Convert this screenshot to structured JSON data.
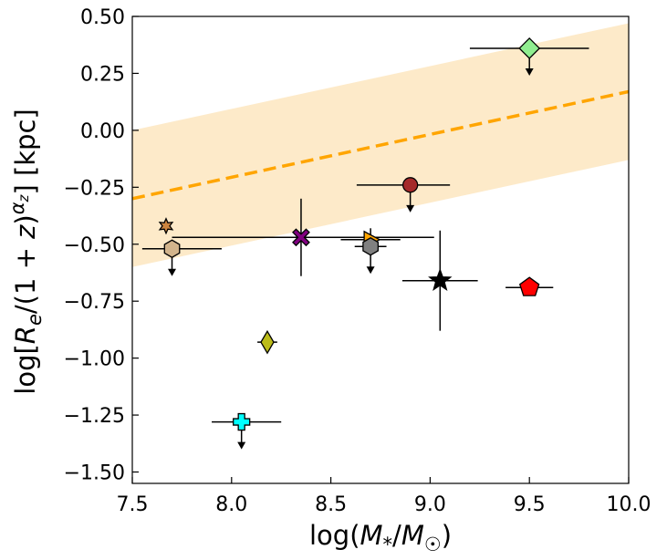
{
  "chart_data": {
    "type": "scatter",
    "xlabel": "log(M*/M☉)",
    "ylabel": "log[Re/(1 + z)^αz] [kpc]",
    "xlim": [
      7.5,
      10.0
    ],
    "ylim": [
      -1.55,
      0.5
    ],
    "xticks": [
      {
        "value": 7.5,
        "label": "7.5"
      },
      {
        "value": 8.0,
        "label": "8.0"
      },
      {
        "value": 8.5,
        "label": "8.5"
      },
      {
        "value": 9.0,
        "label": "9.0"
      },
      {
        "value": 9.5,
        "label": "9.5"
      },
      {
        "value": 10.0,
        "label": "10.0"
      }
    ],
    "yticks": [
      {
        "value": 0.5,
        "label": "0.50"
      },
      {
        "value": 0.25,
        "label": "0.25"
      },
      {
        "value": 0.0,
        "label": "0.00"
      },
      {
        "value": -0.25,
        "label": "−0.25"
      },
      {
        "value": -0.5,
        "label": "−0.50"
      },
      {
        "value": -0.75,
        "label": "−0.75"
      },
      {
        "value": -1.0,
        "label": "−1.00"
      },
      {
        "value": -1.25,
        "label": "−1.25"
      },
      {
        "value": -1.5,
        "label": "−1.50"
      }
    ],
    "grid": false,
    "relation": {
      "x": [
        7.5,
        10.0
      ],
      "y": [
        -0.3,
        0.17
      ],
      "band_upper": [
        0.0,
        0.47
      ],
      "band_lower": [
        -0.6,
        -0.13
      ],
      "line_color": "#ffa500",
      "band_color": "#fde9c6"
    },
    "points": [
      {
        "name": "light-green-diamond",
        "marker": "diamond",
        "color": "#90ee90",
        "x": 9.5,
        "y": 0.36,
        "xerr": [
          0.3,
          0.3
        ],
        "yerr": null,
        "upper_limit": true
      },
      {
        "name": "brown-circle",
        "marker": "circle",
        "color": "#a52a2a",
        "x": 8.9,
        "y": -0.24,
        "xerr": [
          0.27,
          0.2
        ],
        "yerr": null,
        "upper_limit": true
      },
      {
        "name": "peru-star",
        "marker": "star6",
        "color": "#cd853f",
        "x": 7.67,
        "y": -0.42,
        "xerr": null,
        "yerr": null,
        "upper_limit": false
      },
      {
        "name": "tan-hexagon",
        "marker": "hexagon",
        "color": "#d2b48c",
        "x": 7.7,
        "y": -0.52,
        "xerr": [
          0.15,
          0.25
        ],
        "yerr": null,
        "upper_limit": true
      },
      {
        "name": "purple-x",
        "marker": "x",
        "color": "#800080",
        "x": 8.35,
        "y": -0.47,
        "xerr": [
          0.65,
          0.67
        ],
        "yerr": [
          0.17,
          0.17
        ],
        "upper_limit": false
      },
      {
        "name": "orange-triangle",
        "marker": "triangle-right",
        "color": "#ffa500",
        "x": 8.7,
        "y": -0.48,
        "xerr": [
          0.15,
          0.15
        ],
        "yerr": [
          0.05,
          0.05
        ],
        "upper_limit": false
      },
      {
        "name": "gray-hexagon",
        "marker": "hexagon",
        "color": "#808080",
        "x": 8.7,
        "y": -0.51,
        "xerr": [
          0.08,
          0.08
        ],
        "yerr": null,
        "upper_limit": true
      },
      {
        "name": "black-star",
        "marker": "star5",
        "color": "#000000",
        "x": 9.05,
        "y": -0.66,
        "xerr": [
          0.19,
          0.19
        ],
        "yerr": [
          0.22,
          0.22
        ],
        "upper_limit": false
      },
      {
        "name": "red-pentagon",
        "marker": "pentagon",
        "color": "#ff0000",
        "x": 9.5,
        "y": -0.69,
        "xerr": [
          0.12,
          0.12
        ],
        "yerr": [
          0.02,
          0.02
        ],
        "upper_limit": false
      },
      {
        "name": "olive-diamond",
        "marker": "thin-diamond",
        "color": "#bcbc1a",
        "x": 8.18,
        "y": -0.93,
        "xerr": [
          0.05,
          0.05
        ],
        "yerr": null,
        "upper_limit": false
      },
      {
        "name": "cyan-plus",
        "marker": "plus",
        "color": "#00ffff",
        "x": 8.05,
        "y": -1.28,
        "xerr": [
          0.15,
          0.2
        ],
        "yerr": null,
        "upper_limit": true
      }
    ]
  }
}
